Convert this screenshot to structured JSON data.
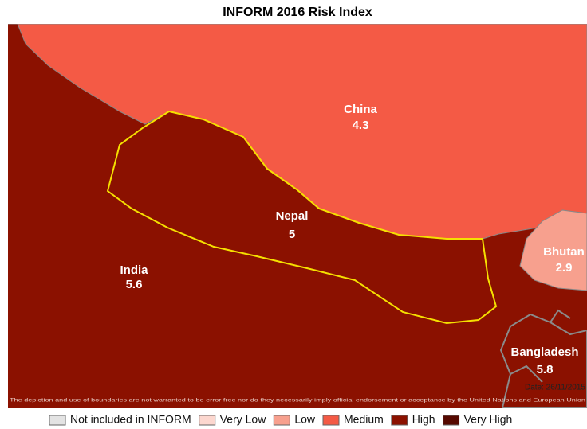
{
  "title": "INFORM 2016 Risk Index",
  "map": {
    "regions": [
      {
        "name": "India",
        "value": 5.6,
        "color": "#8b1100"
      },
      {
        "name": "China",
        "value": 4.3,
        "color": "#f45a45"
      },
      {
        "name": "Nepal",
        "value": 5,
        "color": "#8b1100"
      },
      {
        "name": "Bhutan",
        "value": 2.9,
        "color": "#f7a08e"
      },
      {
        "name": "Bangladesh",
        "value": 5.8,
        "color": "#8b1100"
      }
    ],
    "date": "Date: 26/11/2015",
    "disclaimer": "The depiction and use of boundaries are not warranted to be error free nor do they necessarily imply official endorsement or acceptance by the United Nations and European Union"
  },
  "legend": {
    "items": [
      {
        "label": "Not included in INFORM",
        "color": "#e3e3e3"
      },
      {
        "label": "Very Low",
        "color": "#fcd7cf"
      },
      {
        "label": "Low",
        "color": "#f7a08e"
      },
      {
        "label": "Medium",
        "color": "#f45a45"
      },
      {
        "label": "High",
        "color": "#8b1100"
      },
      {
        "label": "Very High",
        "color": "#560900"
      }
    ]
  }
}
